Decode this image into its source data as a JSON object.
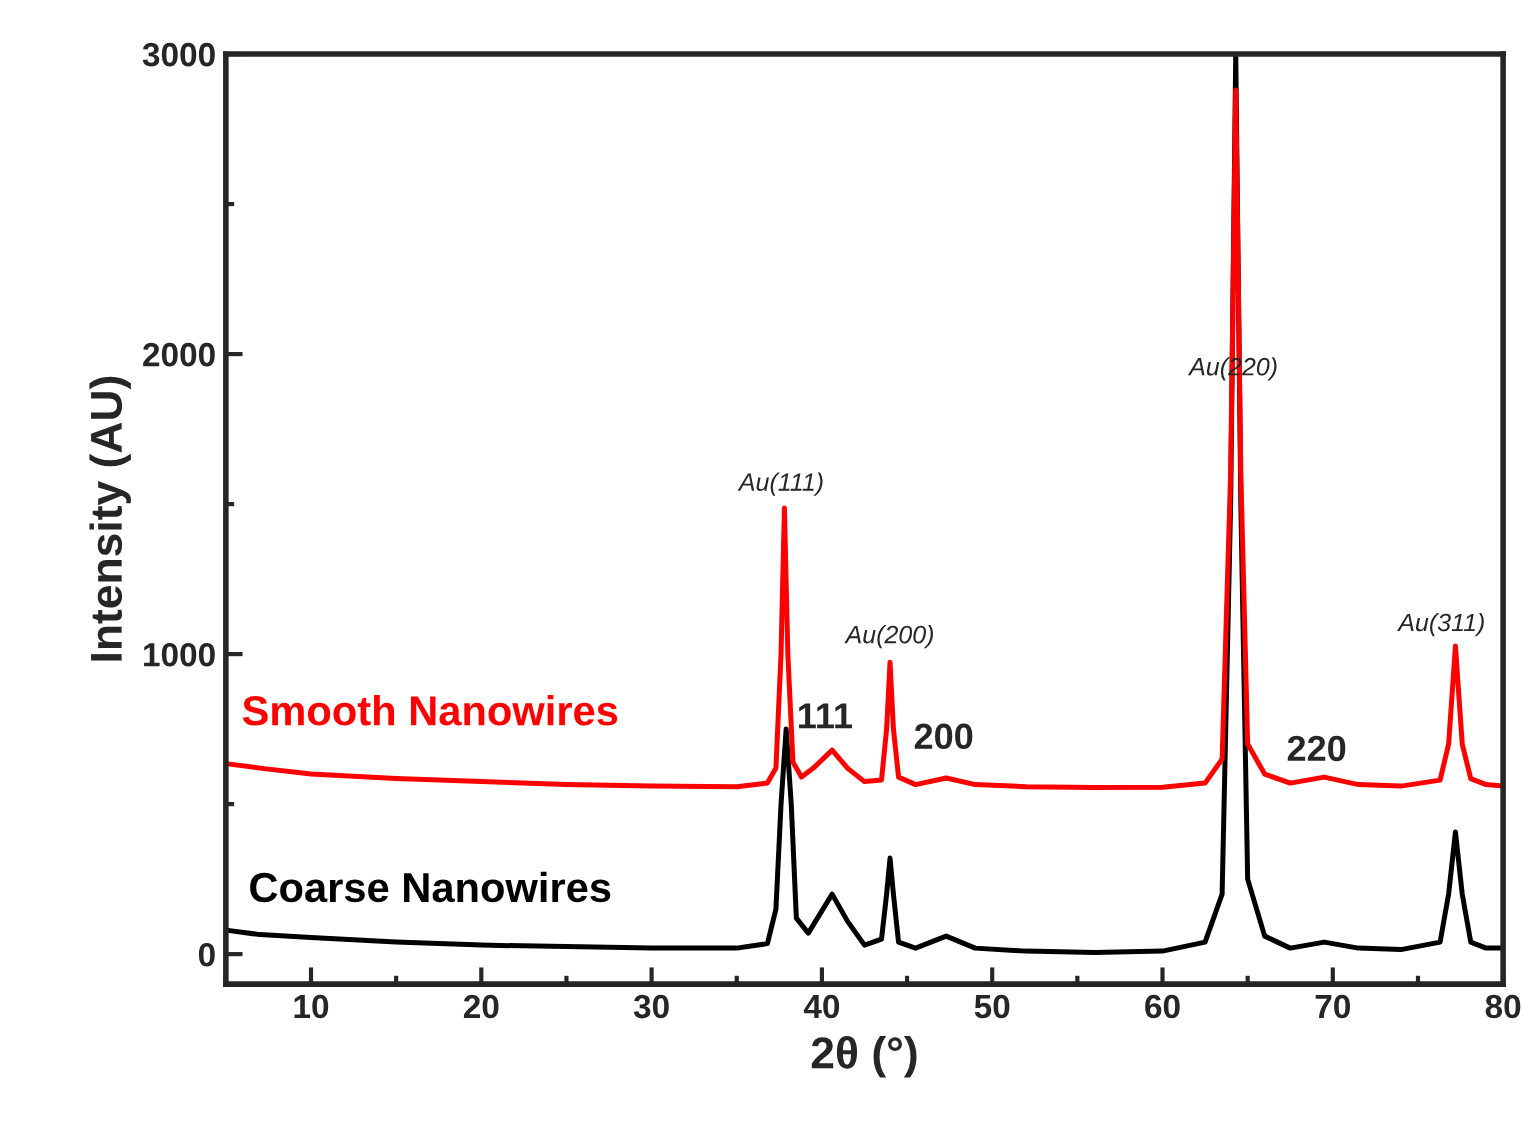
{
  "chart_data": {
    "type": "line",
    "xlabel": "2θ (°)",
    "ylabel": "Intensity (AU)",
    "xlim": [
      5,
      80
    ],
    "xticks": [
      10,
      20,
      30,
      40,
      50,
      60,
      70,
      80
    ],
    "ylim": [
      -100,
      3000
    ],
    "yticks": [
      0,
      1000,
      2000,
      3000
    ],
    "grid": false,
    "legend": false,
    "marker": "none",
    "line_style": "solid",
    "series": [
      {
        "name": "Coarse Nanowires",
        "color": "#000000",
        "x": [
          5,
          7,
          10,
          15,
          20,
          25,
          30,
          35,
          36.8,
          37.3,
          37.6,
          37.9,
          38.2,
          38.5,
          39.2,
          40.6,
          41.5,
          42.5,
          43.5,
          43.8,
          44.0,
          44.2,
          44.5,
          45.5,
          47.3,
          49,
          52,
          56,
          60,
          62.5,
          63.5,
          64.0,
          64.3,
          64.6,
          65.0,
          66,
          67.5,
          69.5,
          71.5,
          74,
          76.3,
          76.8,
          77.2,
          77.6,
          78.1,
          79,
          80
        ],
        "values": [
          80,
          65,
          55,
          40,
          30,
          25,
          20,
          20,
          35,
          150,
          500,
          750,
          500,
          120,
          70,
          200,
          110,
          30,
          50,
          200,
          320,
          200,
          40,
          20,
          60,
          20,
          10,
          5,
          10,
          40,
          200,
          1500,
          3000,
          1500,
          250,
          60,
          20,
          40,
          20,
          15,
          40,
          200,
          407,
          200,
          40,
          20,
          20
        ]
      },
      {
        "name": "Smooth Nanowires",
        "color": "#ff0000",
        "x": [
          5,
          7,
          10,
          15,
          20,
          25,
          30,
          35,
          36.8,
          37.3,
          37.6,
          37.8,
          38.0,
          38.3,
          38.8,
          39.5,
          40.6,
          41.5,
          42.5,
          43.5,
          43.8,
          44.0,
          44.2,
          44.5,
          45.5,
          47.3,
          49,
          52,
          56,
          60,
          62.5,
          63.5,
          64.0,
          64.3,
          64.6,
          65.0,
          66,
          67.5,
          69.5,
          71.5,
          74,
          76.3,
          76.8,
          77.2,
          77.6,
          78.1,
          79,
          80
        ],
        "values": [
          635,
          620,
          600,
          585,
          575,
          565,
          560,
          558,
          570,
          620,
          1000,
          1487,
          1000,
          640,
          590,
          620,
          680,
          620,
          575,
          580,
          750,
          973,
          750,
          590,
          565,
          587,
          565,
          558,
          555,
          556,
          570,
          650,
          1600,
          2880,
          1600,
          700,
          600,
          570,
          590,
          565,
          560,
          580,
          700,
          1027,
          700,
          585,
          565,
          560
        ]
      }
    ],
    "annotations": [
      "Au(111)",
      "Au(200)",
      "Au(220)",
      "Au(311)",
      "111",
      "200",
      "220"
    ]
  }
}
